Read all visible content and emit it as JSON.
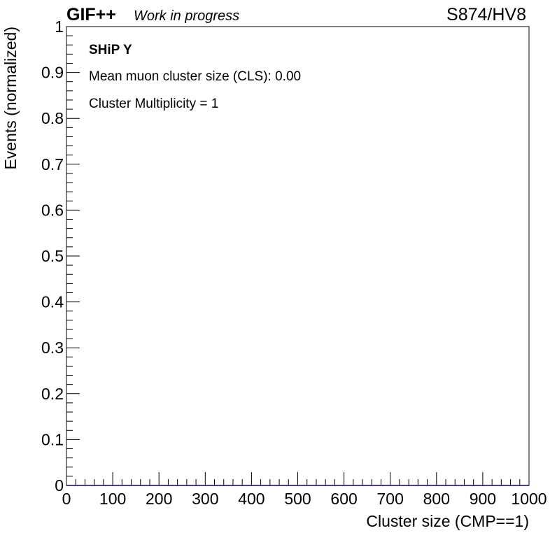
{
  "header": {
    "experiment": "GIF++",
    "status": "Work in progress",
    "run_label": "S874/HV8"
  },
  "annotations": {
    "title": "SHiP Y",
    "mean_cls": "Mean muon cluster size (CLS): 0.00",
    "multiplicity": "Cluster Multiplicity = 1"
  },
  "chart_data": {
    "type": "bar",
    "xlabel": "Cluster size (CMP==1)",
    "ylabel": "Events (normalized)",
    "xlim": [
      0,
      1000
    ],
    "ylim": [
      0,
      1
    ],
    "x_ticks": [
      0,
      100,
      200,
      300,
      400,
      500,
      600,
      700,
      800,
      900,
      1000
    ],
    "x_tick_labels": [
      "0",
      "100",
      "200",
      "300",
      "400",
      "500",
      "600",
      "700",
      "800",
      "900",
      "1000"
    ],
    "y_ticks": [
      0,
      0.1,
      0.2,
      0.3,
      0.4,
      0.5,
      0.6,
      0.7,
      0.8,
      0.9,
      1
    ],
    "y_tick_labels": [
      "0",
      "0.1",
      "0.2",
      "0.3",
      "0.4",
      "0.5",
      "0.6",
      "0.7",
      "0.8",
      "0.9",
      "1"
    ],
    "series": [
      {
        "values": [
          0
        ]
      }
    ],
    "histogram_color": "#000080",
    "grid": false
  }
}
